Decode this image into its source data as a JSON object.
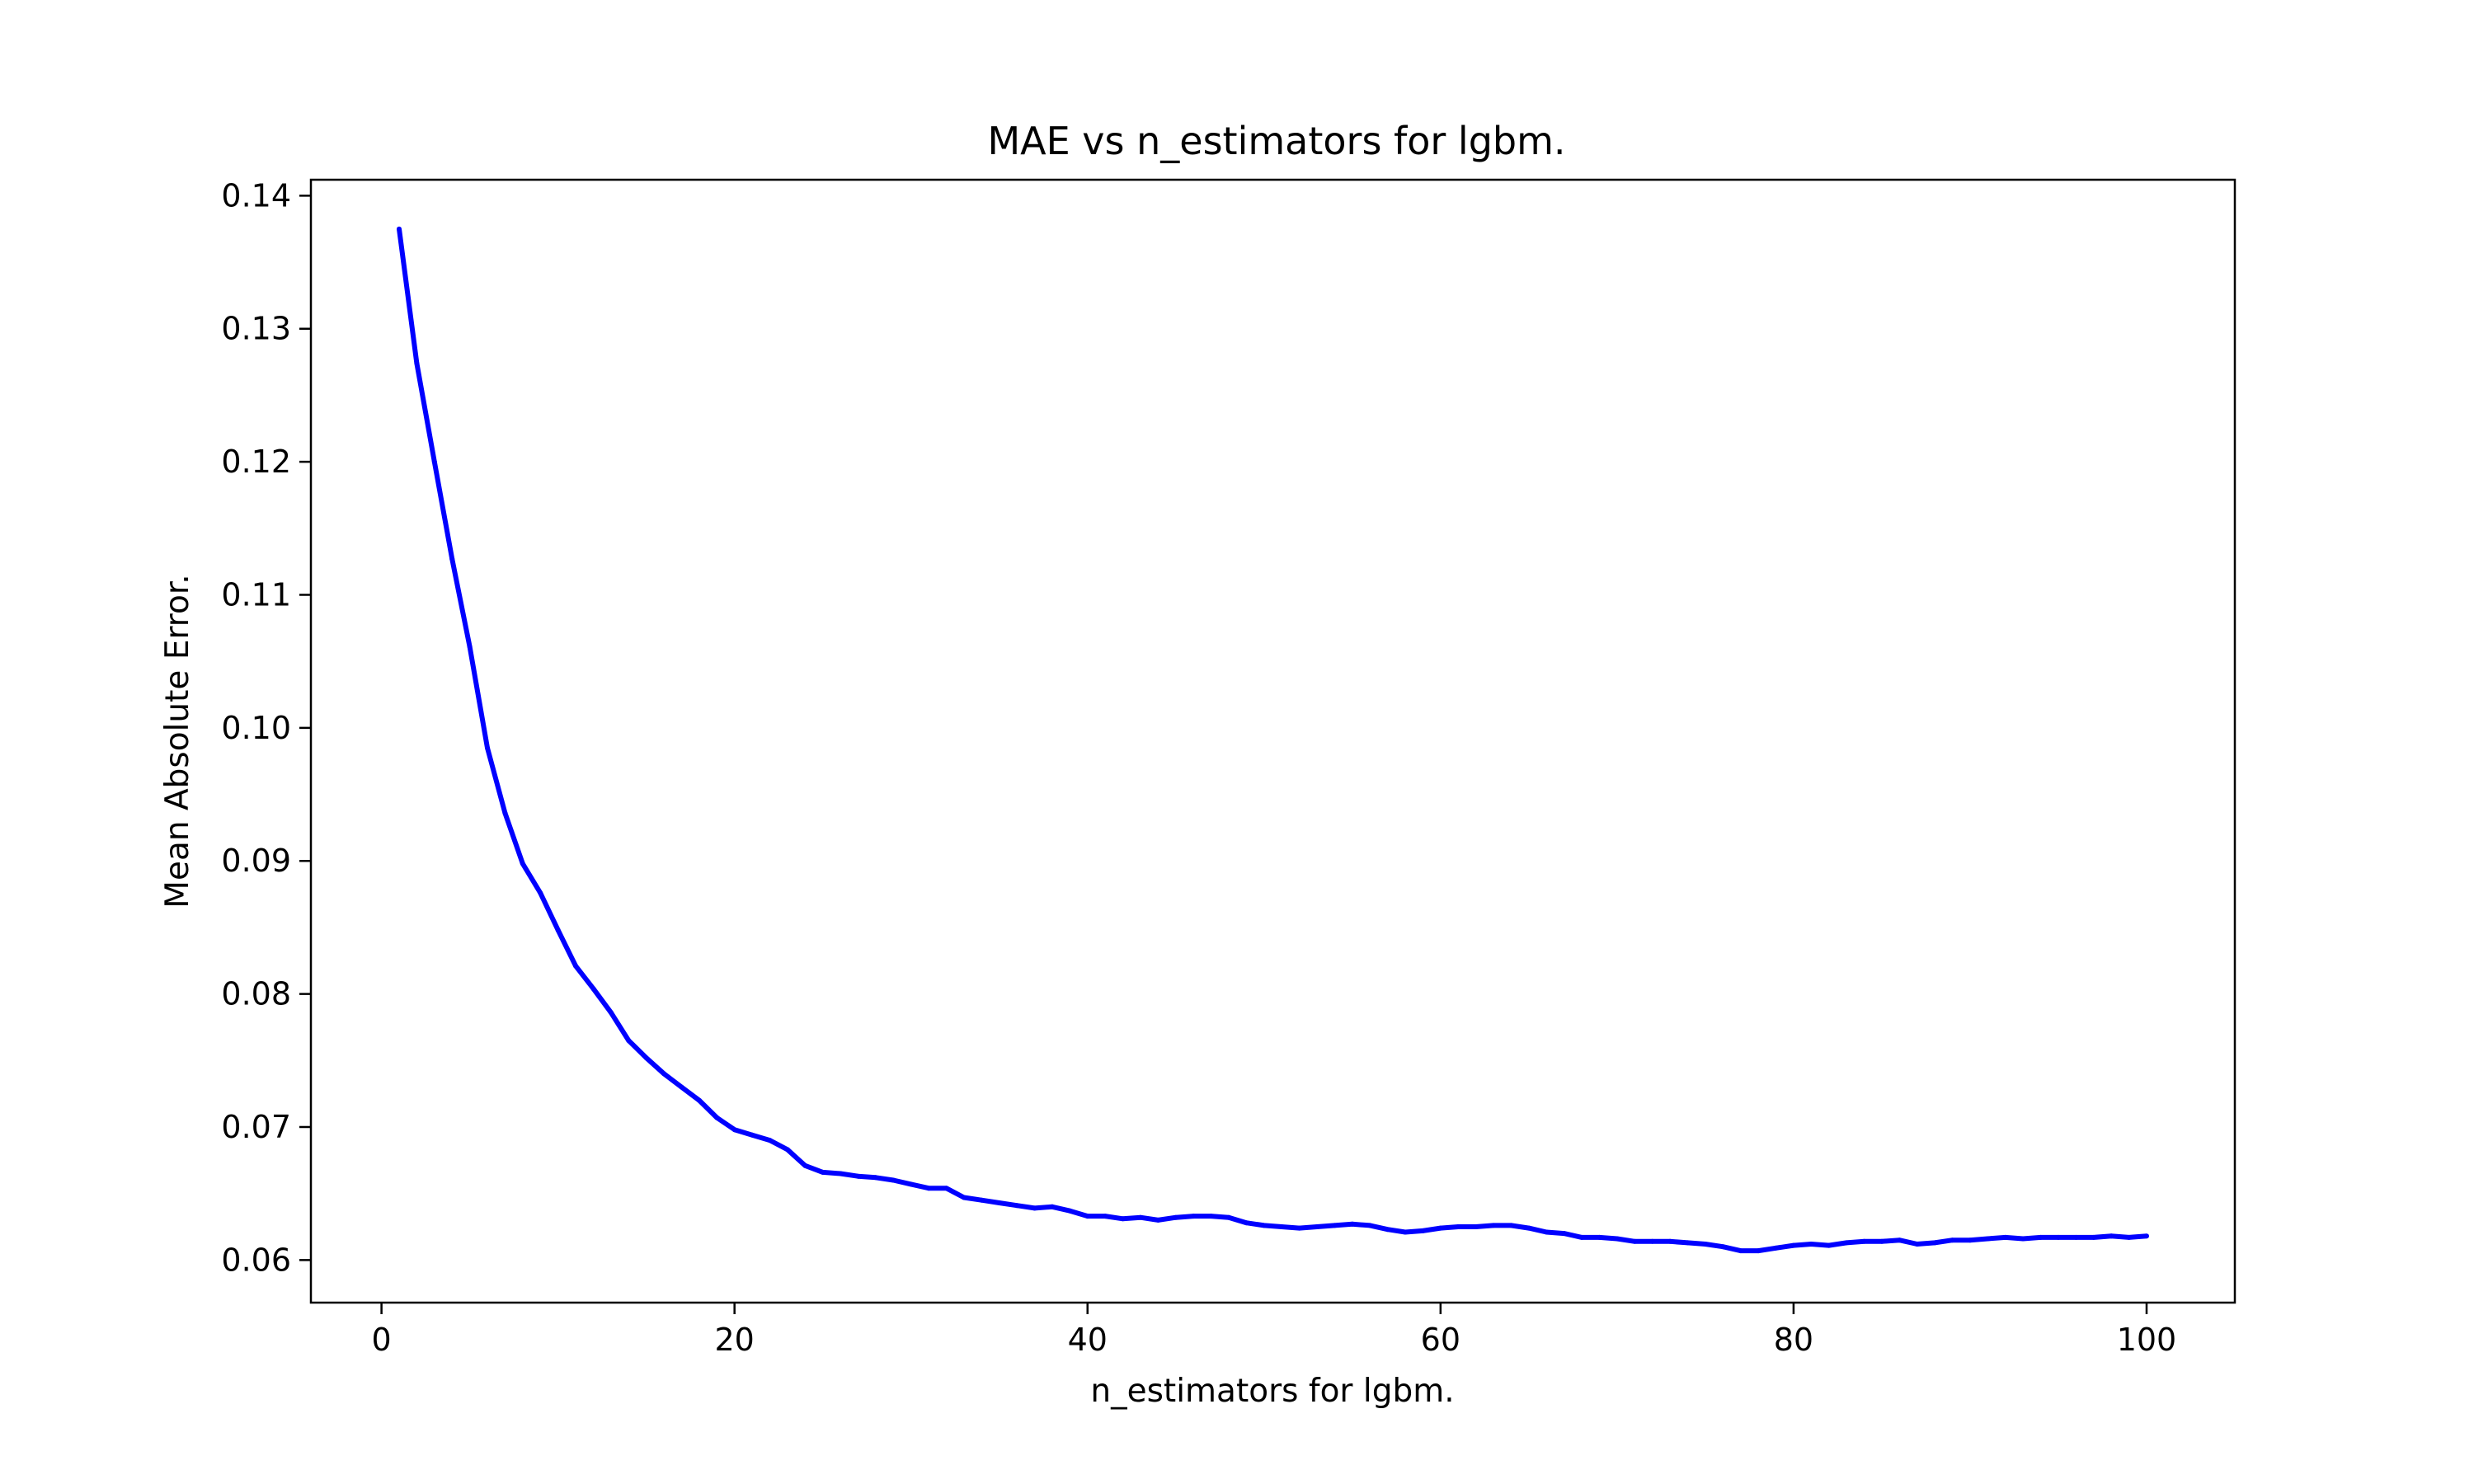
{
  "chart_data": {
    "type": "line",
    "title": "MAE vs n_estimators for lgbm.",
    "xlabel": "n_estimators for lgbm.",
    "ylabel": "Mean Absolute Error.",
    "xlim": [
      -4,
      105
    ],
    "ylim": [
      0.0568,
      0.1412
    ],
    "xticks": [
      0,
      20,
      40,
      60,
      80,
      100
    ],
    "yticks": [
      0.06,
      0.07,
      0.08,
      0.09,
      0.1,
      0.11,
      0.12,
      0.13,
      0.14
    ],
    "xtick_labels": [
      "0",
      "20",
      "40",
      "60",
      "80",
      "100"
    ],
    "ytick_labels": [
      "0.06",
      "0.07",
      "0.08",
      "0.09",
      "0.10",
      "0.11",
      "0.12",
      "0.13",
      "0.14"
    ],
    "grid": false,
    "line_color": "#0000ff",
    "series": [
      {
        "x": [
          1,
          2,
          3,
          4,
          5,
          6,
          7,
          8,
          9,
          10,
          11,
          12,
          13,
          14,
          15,
          16,
          17,
          18,
          19,
          20,
          21,
          22,
          23,
          24,
          25,
          26,
          27,
          28,
          29,
          30,
          31,
          32,
          33,
          34,
          35,
          36,
          37,
          38,
          39,
          40,
          41,
          42,
          43,
          44,
          45,
          46,
          47,
          48,
          49,
          50,
          51,
          52,
          53,
          54,
          55,
          56,
          57,
          58,
          59,
          60,
          61,
          62,
          63,
          64,
          65,
          66,
          67,
          68,
          69,
          70,
          71,
          72,
          73,
          74,
          75,
          76,
          77,
          78,
          79,
          80,
          81,
          82,
          83,
          84,
          85,
          86,
          87,
          88,
          89,
          90,
          91,
          92,
          93,
          94,
          95,
          96,
          97,
          98,
          99,
          100
        ],
        "values": [
          0.1375,
          0.1274,
          0.12,
          0.1127,
          0.1061,
          0.0985,
          0.0936,
          0.0898,
          0.0876,
          0.0848,
          0.0821,
          0.0804,
          0.0786,
          0.0765,
          0.0752,
          0.074,
          0.073,
          0.072,
          0.0707,
          0.0698,
          0.0694,
          0.069,
          0.0683,
          0.0671,
          0.0666,
          0.0665,
          0.0663,
          0.0662,
          0.066,
          0.0657,
          0.0654,
          0.0654,
          0.0647,
          0.0645,
          0.0643,
          0.0641,
          0.0639,
          0.064,
          0.0637,
          0.0633,
          0.0633,
          0.0631,
          0.0632,
          0.063,
          0.0632,
          0.0633,
          0.0633,
          0.0632,
          0.0628,
          0.0626,
          0.0625,
          0.0624,
          0.0625,
          0.0626,
          0.0627,
          0.0626,
          0.0623,
          0.0621,
          0.0622,
          0.0624,
          0.0625,
          0.0625,
          0.0626,
          0.0626,
          0.0624,
          0.0621,
          0.062,
          0.0617,
          0.0617,
          0.0616,
          0.0614,
          0.0614,
          0.0614,
          0.0613,
          0.0612,
          0.061,
          0.0607,
          0.0607,
          0.0609,
          0.0611,
          0.0612,
          0.0611,
          0.0613,
          0.0614,
          0.0614,
          0.0615,
          0.0612,
          0.0613,
          0.0615,
          0.0615,
          0.0616,
          0.0617,
          0.0616,
          0.0617,
          0.0617,
          0.0617,
          0.0617,
          0.0618,
          0.0617,
          0.0618
        ]
      }
    ]
  }
}
